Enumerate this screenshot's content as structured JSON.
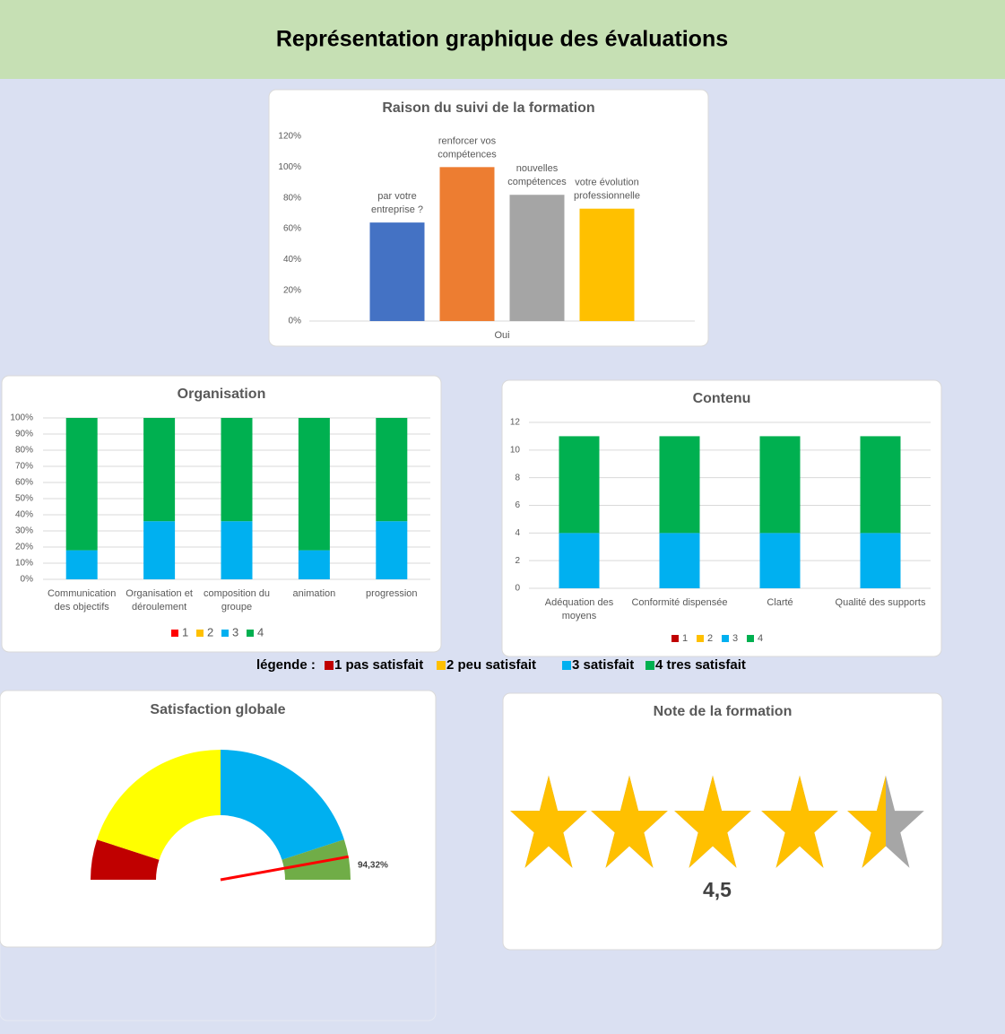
{
  "header": {
    "title": "Représentation graphique des évaluations"
  },
  "legend_note": {
    "label": "légende :",
    "items": [
      {
        "text": "1 pas satisfait",
        "color": "#c00000"
      },
      {
        "text": "2 peu satisfait",
        "color": "#ffc000"
      },
      {
        "text": "3 satisfait",
        "color": "#00b0f0"
      },
      {
        "text": "4 tres satisfait",
        "color": "#00b050"
      }
    ]
  },
  "chart_data": [
    {
      "type": "bar",
      "title": "Raison du suivi de la formation",
      "categories": [
        "Oui"
      ],
      "series": [
        {
          "name": "par votre entreprise ?",
          "color": "#4472c4",
          "values": [
            64
          ]
        },
        {
          "name": "renforcer vos compétences",
          "color": "#ed7d31",
          "values": [
            100
          ]
        },
        {
          "name": "nouvelles compétences",
          "color": "#a5a5a5",
          "values": [
            82
          ]
        },
        {
          "name": "votre évolution professionnelle",
          "color": "#ffc000",
          "values": [
            73
          ]
        }
      ],
      "ylim": [
        0,
        120
      ],
      "yticks": [
        {
          "value": 0,
          "label": "0%"
        },
        {
          "value": 20,
          "label": "20%"
        },
        {
          "value": 40,
          "label": "40%"
        },
        {
          "value": 60,
          "label": "60%"
        },
        {
          "value": 80,
          "label": "80%"
        },
        {
          "value": 100,
          "label": "100%"
        },
        {
          "value": 120,
          "label": "120%"
        }
      ],
      "grid": false,
      "data_labels": "series_name"
    },
    {
      "type": "stacked_bar",
      "title": "Organisation",
      "categories": [
        "Communication des objectifs",
        "Organisation et déroulement",
        "composition du groupe",
        "animation",
        "progression"
      ],
      "series": [
        {
          "name": "1",
          "color": "#ff0000",
          "values": [
            0,
            0,
            0,
            0,
            0
          ]
        },
        {
          "name": "2",
          "color": "#ffc000",
          "values": [
            0,
            0,
            0,
            0,
            0
          ]
        },
        {
          "name": "3",
          "color": "#00b0f0",
          "values": [
            18,
            36,
            36,
            18,
            36
          ]
        },
        {
          "name": "4",
          "color": "#00b050",
          "values": [
            82,
            64,
            64,
            82,
            64
          ]
        }
      ],
      "ylim": [
        0,
        100
      ],
      "yticks": [
        {
          "value": 0,
          "label": "0%"
        },
        {
          "value": 10,
          "label": "10%"
        },
        {
          "value": 20,
          "label": "20%"
        },
        {
          "value": 30,
          "label": "30%"
        },
        {
          "value": 40,
          "label": "40%"
        },
        {
          "value": 50,
          "label": "50%"
        },
        {
          "value": 60,
          "label": "60%"
        },
        {
          "value": 70,
          "label": "70%"
        },
        {
          "value": 80,
          "label": "80%"
        },
        {
          "value": 90,
          "label": "90%"
        },
        {
          "value": 100,
          "label": "100%"
        }
      ],
      "grid": true,
      "legend": "bottom"
    },
    {
      "type": "stacked_bar",
      "title": "Contenu",
      "categories": [
        "Adéquation des moyens",
        "Conformité dispensée",
        "Clarté",
        "Qualité des supports"
      ],
      "series": [
        {
          "name": "1",
          "color": "#c00000",
          "values": [
            0,
            0,
            0,
            0
          ]
        },
        {
          "name": "2",
          "color": "#ffc000",
          "values": [
            0,
            0,
            0,
            0
          ]
        },
        {
          "name": "3",
          "color": "#00b0f0",
          "values": [
            4,
            4,
            4,
            4
          ]
        },
        {
          "name": "4",
          "color": "#00b050",
          "values": [
            7,
            7,
            7,
            7
          ]
        }
      ],
      "ylim": [
        0,
        12
      ],
      "yticks": [
        0,
        2,
        4,
        6,
        8,
        10,
        12
      ],
      "grid": true,
      "legend": "bottom"
    },
    {
      "type": "gauge",
      "title": "Satisfaction globale",
      "values": [
        10,
        40,
        40,
        10
      ],
      "colors": [
        "#c00000",
        "#ffff00",
        "#00b0f0",
        "#70ad47"
      ],
      "needle": 94.32,
      "needle_label": "94,32%",
      "needle_color": "#ff0000"
    },
    {
      "type": "rating",
      "title": "Note de la formation",
      "value": 4.5,
      "value_label": "4,5",
      "max": 5,
      "color": "#ffc000",
      "empty_color": "#a6a6a6"
    }
  ]
}
